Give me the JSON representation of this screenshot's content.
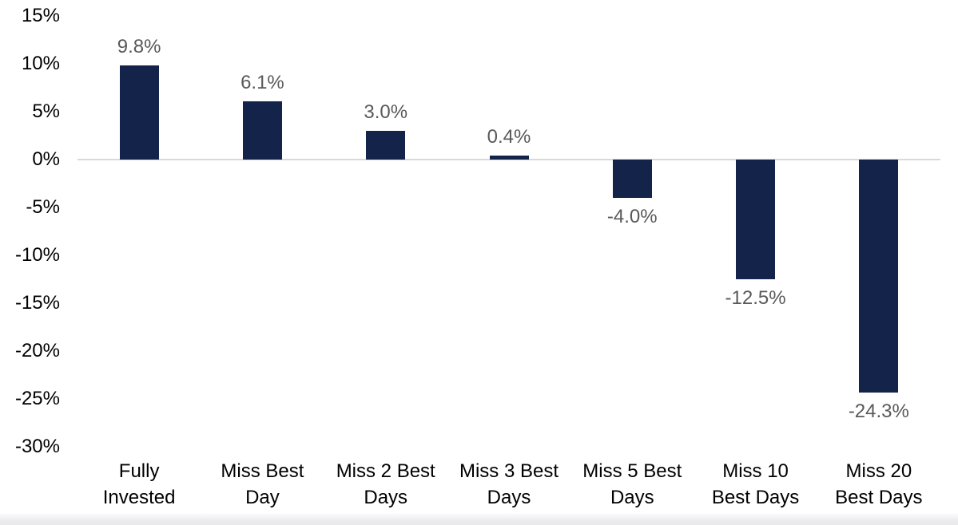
{
  "chart_data": {
    "type": "bar",
    "title": "",
    "categories": [
      "Fully Invested",
      "Miss Best Day",
      "Miss 2 Best Days",
      "Miss 3 Best Days",
      "Miss 5 Best Days",
      "Miss 10 Best Days",
      "Miss 20 Best Days"
    ],
    "category_lines": [
      [
        "Fully",
        "Invested"
      ],
      [
        "Miss Best",
        "Day"
      ],
      [
        "Miss 2 Best",
        "Days"
      ],
      [
        "Miss 3 Best",
        "Days"
      ],
      [
        "Miss 5 Best",
        "Days"
      ],
      [
        "Miss 10",
        "Best Days"
      ],
      [
        "Miss 20",
        "Best Days"
      ]
    ],
    "values": [
      9.8,
      6.1,
      3.0,
      0.4,
      -4.0,
      -12.5,
      -24.3
    ],
    "data_labels": [
      "9.8%",
      "6.1%",
      "3.0%",
      "0.4%",
      "-4.0%",
      "-12.5%",
      "-24.3%"
    ],
    "y_axis": {
      "min": -30,
      "max": 15,
      "step": 5,
      "ticks": [
        {
          "label": "15%",
          "value": 15
        },
        {
          "label": "10%",
          "value": 10
        },
        {
          "label": "5%",
          "value": 5
        },
        {
          "label": "0%",
          "value": 0
        },
        {
          "label": "-5%",
          "value": -5
        },
        {
          "label": "-10%",
          "value": -10
        },
        {
          "label": "-15%",
          "value": -15
        },
        {
          "label": "-20%",
          "value": -20
        },
        {
          "label": "-25%",
          "value": -25
        },
        {
          "label": "-30%",
          "value": -30
        }
      ]
    },
    "grid": false,
    "legend": false,
    "colors": {
      "bar": "#13234a",
      "data_label": "#595959",
      "axis_text": "#000000",
      "zero_line": "#d9d9d9",
      "background": "#ffffff"
    }
  }
}
